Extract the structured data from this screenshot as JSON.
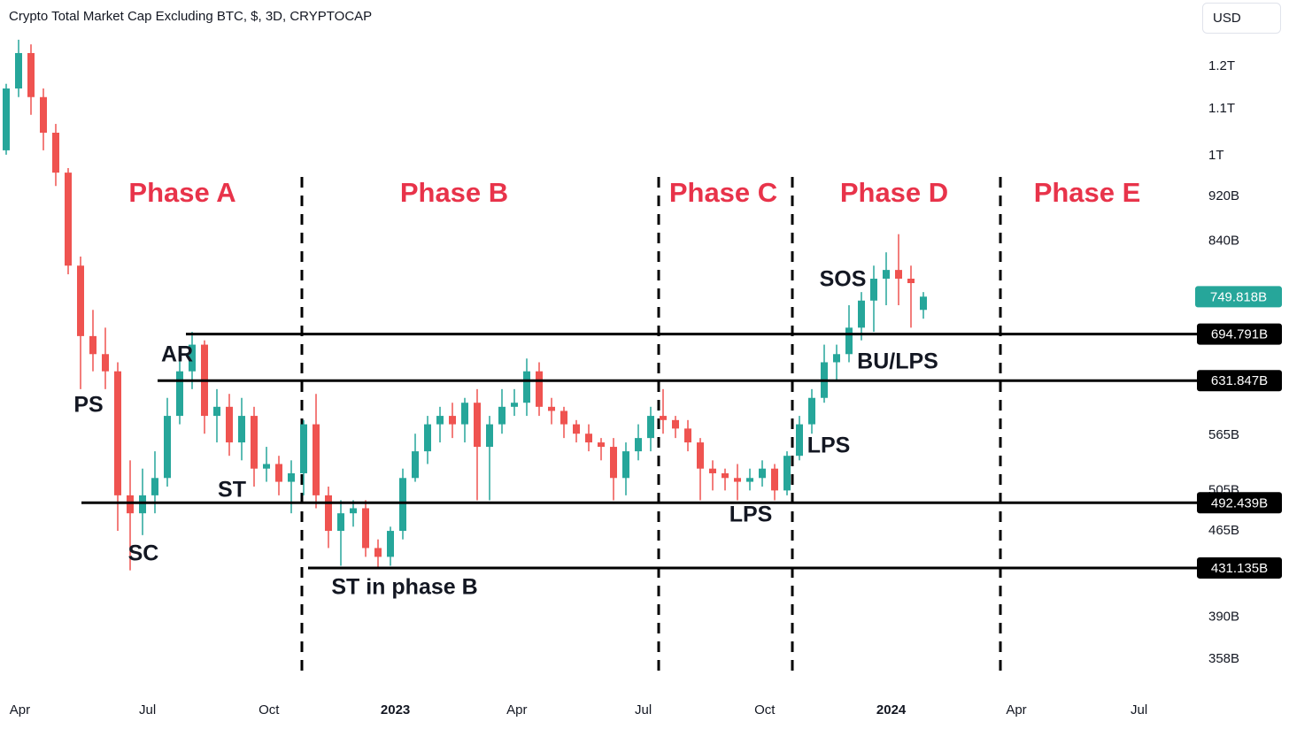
{
  "chart_data": {
    "type": "candlestick",
    "title": "Crypto Total Market Cap Excluding BTC, $, 3D, CRYPTOCAP",
    "currency": "USD",
    "log_scale": true,
    "up_color": "#26a69a",
    "down_color": "#ef5350",
    "open": [
      1011,
      1147,
      1233,
      1127,
      1048,
      966,
      799,
      692,
      667,
      644,
      500,
      482,
      500,
      518,
      588,
      644,
      680,
      588,
      599,
      557,
      588,
      528,
      533,
      514,
      523,
      578,
      500,
      465,
      482,
      487,
      449,
      441,
      465,
      518,
      547,
      578,
      588,
      578,
      604,
      552,
      578,
      599,
      604,
      644,
      599,
      594,
      578,
      567,
      557,
      552,
      518,
      547,
      562,
      588,
      583,
      573,
      557,
      528,
      523,
      518,
      514,
      518,
      528,
      505,
      542,
      578,
      610,
      656,
      667,
      704,
      744,
      778,
      792,
      778,
      730
    ],
    "high": [
      1158,
      1267,
      1255,
      1147,
      1067,
      975,
      814,
      730,
      704,
      656,
      537,
      528,
      547,
      610,
      667,
      698,
      686,
      621,
      615,
      610,
      599,
      552,
      542,
      537,
      583,
      615,
      509,
      495,
      495,
      495,
      457,
      469,
      528,
      567,
      588,
      599,
      604,
      610,
      621,
      588,
      621,
      621,
      661,
      656,
      610,
      599,
      583,
      578,
      562,
      562,
      557,
      578,
      599,
      621,
      588,
      583,
      562,
      537,
      528,
      533,
      528,
      537,
      533,
      547,
      588,
      621,
      680,
      680,
      737,
      757,
      799,
      821,
      852,
      799,
      757
    ],
    "low": [
      1002,
      1127,
      1087,
      1011,
      940,
      785,
      621,
      644,
      621,
      465,
      429,
      461,
      482,
      509,
      578,
      621,
      567,
      557,
      542,
      537,
      509,
      514,
      500,
      482,
      500,
      487,
      449,
      433,
      469,
      441,
      431,
      433,
      457,
      514,
      533,
      557,
      562,
      557,
      495,
      495,
      567,
      588,
      588,
      588,
      578,
      562,
      557,
      547,
      537,
      495,
      500,
      537,
      547,
      567,
      562,
      547,
      495,
      505,
      505,
      495,
      505,
      509,
      495,
      500,
      537,
      567,
      604,
      632,
      656,
      686,
      698,
      737,
      737,
      704,
      717
    ],
    "close": [
      1147,
      1233,
      1127,
      1048,
      966,
      799,
      692,
      667,
      644,
      500,
      482,
      500,
      518,
      588,
      644,
      680,
      588,
      599,
      557,
      588,
      528,
      533,
      514,
      523,
      578,
      500,
      465,
      482,
      487,
      449,
      441,
      465,
      518,
      547,
      578,
      588,
      578,
      604,
      552,
      578,
      599,
      604,
      644,
      599,
      594,
      578,
      567,
      557,
      552,
      518,
      547,
      562,
      588,
      583,
      573,
      557,
      528,
      523,
      518,
      514,
      518,
      528,
      505,
      542,
      578,
      610,
      656,
      667,
      704,
      744,
      778,
      792,
      778,
      771,
      750
    ],
    "xlim": [
      -0.5,
      95.5
    ],
    "xticks": [
      {
        "value": 1.1,
        "label": "Apr"
      },
      {
        "value": 11.4,
        "label": "Jul"
      },
      {
        "value": 21.2,
        "label": "Oct"
      },
      {
        "value": 31.4,
        "label": "2023"
      },
      {
        "value": 41.2,
        "label": "Apr"
      },
      {
        "value": 51.4,
        "label": "Jul"
      },
      {
        "value": 61.2,
        "label": "Oct"
      },
      {
        "value": 71.4,
        "label": "2024"
      },
      {
        "value": 81.5,
        "label": "Apr"
      },
      {
        "value": 91.4,
        "label": "Jul"
      }
    ],
    "ylim": [
      330,
      1374
    ],
    "yticks": [
      {
        "value": 1200,
        "label": "1.2T"
      },
      {
        "value": 1100,
        "label": "1.1T"
      },
      {
        "value": 1000,
        "label": "1T"
      },
      {
        "value": 920,
        "label": "920B"
      },
      {
        "value": 840,
        "label": "840B"
      },
      {
        "value": 565,
        "label": "565B"
      },
      {
        "value": 505,
        "label": "505B"
      },
      {
        "value": 465,
        "label": "465B"
      },
      {
        "value": 390,
        "label": "390B"
      },
      {
        "value": 358,
        "label": "358B"
      }
    ],
    "levels": [
      {
        "value": 694.791,
        "label": "694.791B"
      },
      {
        "value": 631.847,
        "label": "631.847B"
      },
      {
        "value": 492.439,
        "label": "492.439B"
      },
      {
        "value": 431.135,
        "label": "431.135B"
      }
    ],
    "last_price": {
      "value": 749.818,
      "label": "749.818B"
    },
    "phases": [
      "Phase A",
      "Phase B",
      "Phase C",
      "Phase D",
      "Phase E"
    ],
    "annotations": [
      "PS",
      "AR",
      "SC",
      "ST",
      "ST in phase B",
      "LPS",
      "LPS",
      "SOS",
      "BU/LPS"
    ]
  }
}
